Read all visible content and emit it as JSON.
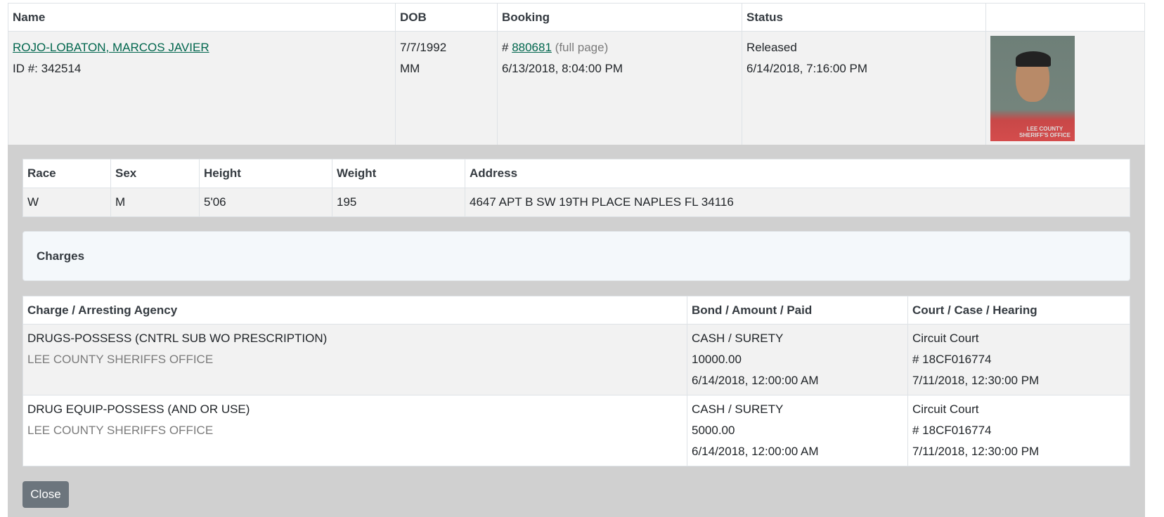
{
  "inmates_table": {
    "headers": {
      "name": "Name",
      "dob": "DOB",
      "booking": "Booking",
      "status": "Status",
      "photo": ""
    },
    "row": {
      "name": "ROJO-LOBATON, MARCOS JAVIER",
      "id": "ID #: 342514",
      "dob": "7/7/1992",
      "dob_extra": "MM",
      "booking_prefix": "# ",
      "booking_number": "880681",
      "full_page": "(full page)",
      "booking_date": "6/13/2018, 8:04:00 PM",
      "status": "Released",
      "status_date": "6/14/2018, 7:16:00 PM",
      "photo_watermark": "LEE COUNTY SHERIFF'S OFFICE"
    }
  },
  "physical": {
    "headers": [
      "Race",
      "Sex",
      "Height",
      "Weight",
      "Address"
    ],
    "values": [
      "W",
      "M",
      "5'06",
      "195",
      "4647 APT B SW 19TH PLACE NAPLES FL 34116"
    ]
  },
  "charges_title": "Charges",
  "charges": {
    "headers": [
      "Charge / Arresting Agency",
      "Bond / Amount / Paid",
      "Court / Case / Hearing"
    ],
    "rows": [
      {
        "charge": "DRUGS-POSSESS (CNTRL SUB WO PRESCRIPTION)",
        "agency": "LEE COUNTY SHERIFFS OFFICE",
        "bond": "CASH / SURETY",
        "amount": "10000.00",
        "paid": "6/14/2018, 12:00:00 AM",
        "court": "Circuit Court",
        "case": "# 18CF016774",
        "hearing": "7/11/2018, 12:30:00 PM"
      },
      {
        "charge": "DRUG EQUIP-POSSESS (AND OR USE)",
        "agency": "LEE COUNTY SHERIFFS OFFICE",
        "bond": "CASH / SURETY",
        "amount": "5000.00",
        "paid": "6/14/2018, 12:00:00 AM",
        "court": "Circuit Court",
        "case": "# 18CF016774",
        "hearing": "7/11/2018, 12:30:00 PM"
      }
    ]
  },
  "close_label": "Close"
}
